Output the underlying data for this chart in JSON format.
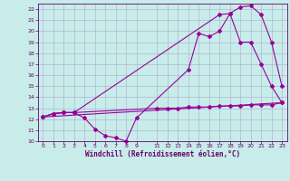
{
  "background_color": "#c8ecea",
  "grid_color": "#aaaacc",
  "line_color": "#990099",
  "xlabel": "Windchill (Refroidissement éolien,°C)",
  "ylim": [
    10,
    22.5
  ],
  "xlim": [
    -0.5,
    23.5
  ],
  "yticks": [
    10,
    11,
    12,
    13,
    14,
    15,
    16,
    17,
    18,
    19,
    20,
    21,
    22
  ],
  "xticks": [
    0,
    1,
    2,
    3,
    4,
    5,
    6,
    7,
    8,
    9,
    11,
    12,
    13,
    14,
    15,
    16,
    17,
    18,
    19,
    20,
    21,
    22,
    23
  ],
  "series1_x": [
    0,
    1,
    2,
    3,
    4,
    5,
    6,
    7,
    8,
    9,
    14,
    15,
    16,
    17,
    18,
    19,
    20,
    21,
    22,
    23
  ],
  "series1_y": [
    12.2,
    12.5,
    12.6,
    12.6,
    12.1,
    11.1,
    10.5,
    10.3,
    10.0,
    12.1,
    16.5,
    19.8,
    19.5,
    20.0,
    21.6,
    22.2,
    22.3,
    21.5,
    19.0,
    15.0
  ],
  "series2_x": [
    0,
    1,
    2,
    3,
    17,
    18,
    19,
    20,
    21,
    22,
    23
  ],
  "series2_y": [
    12.2,
    12.5,
    12.6,
    12.6,
    21.5,
    21.6,
    19.0,
    19.0,
    17.0,
    15.0,
    13.5
  ],
  "series3_x": [
    0,
    23
  ],
  "series3_y": [
    12.2,
    13.5
  ],
  "series4_x": [
    0,
    1,
    2,
    3,
    11,
    12,
    13,
    14,
    15,
    16,
    17,
    18,
    19,
    20,
    21,
    22,
    23
  ],
  "series4_y": [
    12.2,
    12.5,
    12.6,
    12.6,
    13.0,
    13.0,
    13.0,
    13.1,
    13.1,
    13.1,
    13.2,
    13.2,
    13.2,
    13.3,
    13.3,
    13.3,
    13.5
  ],
  "label_color": "#660066",
  "tick_fontsize": 4.5,
  "xlabel_fontsize": 5.5
}
